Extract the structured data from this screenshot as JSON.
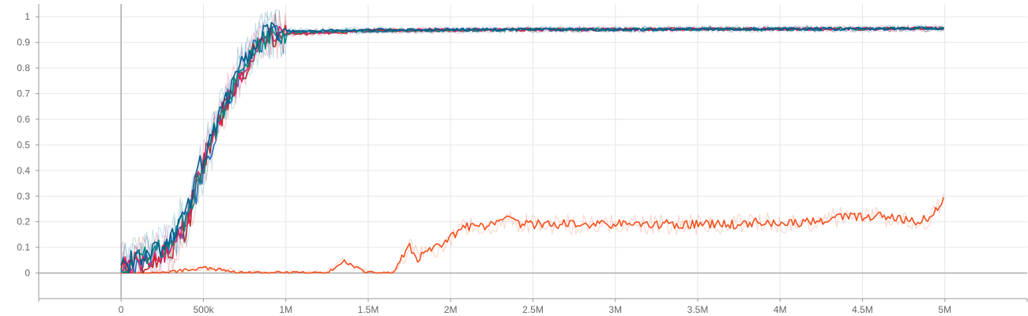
{
  "chart_data": {
    "type": "line",
    "title": "",
    "xlabel": "",
    "ylabel": "",
    "xlim": [
      -500000,
      5500000
    ],
    "ylim": [
      -0.1,
      1.05
    ],
    "grid": true,
    "x_ticks": [
      {
        "value": 0,
        "label": "0"
      },
      {
        "value": 500000,
        "label": "500k"
      },
      {
        "value": 1000000,
        "label": "1M"
      },
      {
        "value": 1500000,
        "label": "1.5M"
      },
      {
        "value": 2000000,
        "label": "2M"
      },
      {
        "value": 2500000,
        "label": "2.5M"
      },
      {
        "value": 3000000,
        "label": "3M"
      },
      {
        "value": 3500000,
        "label": "3.5M"
      },
      {
        "value": 4000000,
        "label": "4M"
      },
      {
        "value": 4500000,
        "label": "4.5M"
      },
      {
        "value": 5000000,
        "label": "5M"
      }
    ],
    "y_ticks": [
      {
        "value": 0,
        "label": "0"
      },
      {
        "value": 0.1,
        "label": "0.1"
      },
      {
        "value": 0.2,
        "label": "0.2"
      },
      {
        "value": 0.3,
        "label": "0.3"
      },
      {
        "value": 0.4,
        "label": "0.4"
      },
      {
        "value": 0.5,
        "label": "0.5"
      },
      {
        "value": 0.6,
        "label": "0.6"
      },
      {
        "value": 0.7,
        "label": "0.7"
      },
      {
        "value": 0.8,
        "label": "0.8"
      },
      {
        "value": 0.9,
        "label": "0.9"
      },
      {
        "value": 1,
        "label": "1"
      }
    ],
    "series": [
      {
        "color": "#f4511e",
        "x": [
          0,
          250000,
          500000,
          750000,
          1000000,
          1250000,
          1300000,
          1350000,
          1400000,
          1500000,
          1650000,
          1700000,
          1750000,
          1800000,
          1850000,
          1900000,
          2000000,
          2050000,
          2100000,
          2150000,
          2200000,
          2300000,
          2350000,
          2400000,
          2500000,
          2600000,
          2800000,
          3000000,
          3500000,
          3750000,
          3850000,
          4000000,
          4200000,
          4300000,
          4400000,
          4500000,
          4600000,
          4700000,
          4800000,
          4900000,
          5000000
        ],
        "y": [
          0.0,
          0.0,
          0.02,
          0.0,
          0.0,
          0.0,
          0.02,
          0.05,
          0.03,
          0.0,
          0.0,
          0.05,
          0.1,
          0.06,
          0.08,
          0.09,
          0.14,
          0.16,
          0.18,
          0.18,
          0.18,
          0.19,
          0.22,
          0.19,
          0.19,
          0.19,
          0.19,
          0.19,
          0.19,
          0.19,
          0.2,
          0.19,
          0.2,
          0.21,
          0.22,
          0.22,
          0.22,
          0.21,
          0.2,
          0.21,
          0.29
        ]
      },
      {
        "color": "#1976d2",
        "x": [
          0,
          100000,
          200000,
          300000,
          400000,
          500000,
          600000,
          700000,
          800000,
          900000,
          1000000,
          1500000,
          2000000,
          2500000,
          3000000,
          3500000,
          4000000,
          4500000,
          5000000
        ],
        "y": [
          0.02,
          0.04,
          0.07,
          0.11,
          0.2,
          0.4,
          0.6,
          0.76,
          0.88,
          0.93,
          0.94,
          0.945,
          0.948,
          0.95,
          0.95,
          0.952,
          0.952,
          0.953,
          0.955
        ]
      },
      {
        "color": "#c62828",
        "x": [
          0,
          100000,
          200000,
          300000,
          400000,
          500000,
          600000,
          700000,
          800000,
          900000,
          1000000,
          1500000,
          2000000,
          2500000,
          3000000,
          3500000,
          4000000,
          4500000,
          5000000
        ],
        "y": [
          0.03,
          0.04,
          0.05,
          0.09,
          0.18,
          0.42,
          0.6,
          0.73,
          0.85,
          0.92,
          0.93,
          0.945,
          0.948,
          0.95,
          0.95,
          0.952,
          0.952,
          0.953,
          0.955
        ]
      },
      {
        "color": "#e91e63",
        "x": [
          0,
          100000,
          200000,
          300000,
          400000,
          500000,
          600000,
          700000,
          800000,
          900000,
          1000000,
          1500000,
          2000000,
          2500000,
          3000000,
          3500000,
          4000000,
          4500000,
          5000000
        ],
        "y": [
          0.02,
          0.03,
          0.06,
          0.1,
          0.2,
          0.45,
          0.62,
          0.75,
          0.86,
          0.92,
          0.935,
          0.945,
          0.948,
          0.95,
          0.95,
          0.952,
          0.952,
          0.953,
          0.955
        ]
      },
      {
        "color": "#00897b",
        "x": [
          0,
          100000,
          200000,
          300000,
          400000,
          500000,
          600000,
          700000,
          800000,
          900000,
          1000000,
          1500000,
          2000000,
          2500000,
          3000000,
          3500000,
          4000000,
          4500000,
          5000000
        ],
        "y": [
          0.02,
          0.05,
          0.08,
          0.12,
          0.22,
          0.42,
          0.61,
          0.76,
          0.87,
          0.93,
          0.94,
          0.945,
          0.948,
          0.95,
          0.95,
          0.952,
          0.952,
          0.953,
          0.955
        ]
      },
      {
        "color": "#005c8f",
        "x": [
          0,
          100000,
          200000,
          300000,
          400000,
          500000,
          600000,
          700000,
          800000,
          900000,
          1000000,
          1500000,
          2000000,
          2500000,
          3000000,
          3500000,
          4000000,
          4500000,
          5000000
        ],
        "y": [
          0.03,
          0.05,
          0.09,
          0.13,
          0.24,
          0.46,
          0.63,
          0.78,
          0.89,
          0.94,
          0.945,
          0.948,
          0.95,
          0.95,
          0.95,
          0.952,
          0.952,
          0.953,
          0.956
        ]
      }
    ]
  }
}
